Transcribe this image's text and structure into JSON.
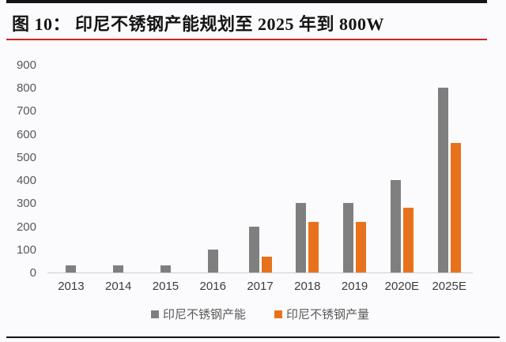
{
  "header": {
    "figure_title": "图 10：  印尼不锈钢产能规划至 2025 年到 800W"
  },
  "chart_data": {
    "type": "bar",
    "title": "印尼不锈钢产能规划至 2025 年到 800W",
    "categories": [
      "2013",
      "2014",
      "2015",
      "2016",
      "2017",
      "2018",
      "2019",
      "2020E",
      "2025E"
    ],
    "series": [
      {
        "name": "印尼不锈钢产能",
        "color": "#7f7f7f",
        "values": [
          30,
          30,
          30,
          100,
          200,
          300,
          300,
          400,
          800
        ]
      },
      {
        "name": "印尼不锈钢产量",
        "color": "#e8721c",
        "values": [
          0,
          0,
          0,
          0,
          70,
          220,
          220,
          280,
          560
        ]
      }
    ],
    "xlabel": "",
    "ylabel": "",
    "ylim": [
      0,
      900
    ],
    "yticks": [
      0,
      100,
      200,
      300,
      400,
      500,
      600,
      700,
      800,
      900
    ],
    "grid": false,
    "legend_position": "bottom"
  },
  "colors": {
    "capacity_gray": "#7f7f7f",
    "production_orange": "#e8721c",
    "title_text": "#151515",
    "axis_text": "#595959",
    "category_text": "#3d3d3d",
    "red_rule": "#cf2221",
    "black_rule": "#131313",
    "axis_line": "#cfcfcf",
    "background": "#fbfafc"
  }
}
